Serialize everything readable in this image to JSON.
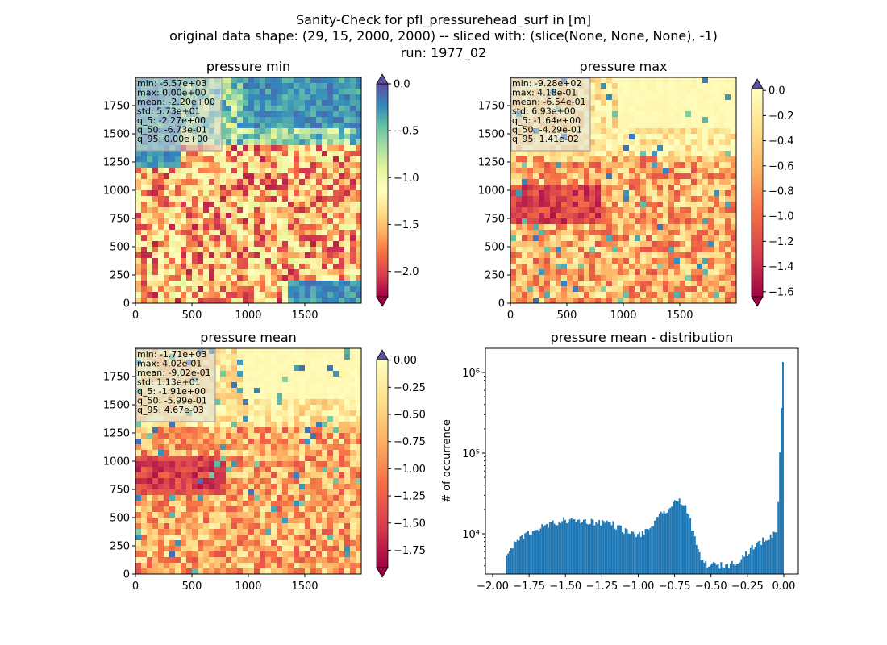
{
  "suptitle": [
    "Sanity-Check for pfl_pressurehead_surf in [m]",
    "original data shape: (29, 15, 2000, 2000) -- sliced with: (slice(None, None, None), -1)",
    "run: 1977_02"
  ],
  "colormap": "Spectral",
  "colors": {
    "histogram_bar": "#1f77b4",
    "colormap_stops": [
      "#9e0142",
      "#d53e4f",
      "#f46d43",
      "#fdae61",
      "#fee08b",
      "#ffffbf",
      "#e6f598",
      "#abdda4",
      "#66c2a5",
      "#3288bd",
      "#5e4fa2"
    ]
  },
  "chart_data": [
    {
      "type": "heatmap",
      "title": "pressure min",
      "xticks": [
        "0",
        "500",
        "1000",
        "1500"
      ],
      "yticks": [
        "0",
        "250",
        "500",
        "750",
        "1000",
        "1250",
        "1500",
        "1750"
      ],
      "xlim": [
        0,
        2000
      ],
      "ylim": [
        0,
        2000
      ],
      "colorbar": {
        "ticks": [
          "0.0",
          "−0.5",
          "−1.0",
          "−1.5",
          "−2.0"
        ],
        "tick_values": [
          0.0,
          -0.5,
          -1.0,
          -1.5,
          -2.0
        ],
        "vmin": -2.27,
        "vmax": 0.0,
        "extend": "both"
      },
      "stats": [
        "min: -6.57e+03",
        "max: 0.00e+00",
        "mean: -2.20e+00",
        "std: 5.73e+01",
        "q_5: -2.27e+00",
        "q_50: -6.73e-01",
        "q_95: 0.00e+00"
      ]
    },
    {
      "type": "heatmap",
      "title": "pressure max",
      "xticks": [
        "0",
        "500",
        "1000",
        "1500"
      ],
      "yticks": [
        "0",
        "250",
        "500",
        "750",
        "1000",
        "1250",
        "1500",
        "1750"
      ],
      "xlim": [
        0,
        2000
      ],
      "ylim": [
        0,
        2000
      ],
      "colorbar": {
        "ticks": [
          "0.0",
          "−0.2",
          "−0.4",
          "−0.6",
          "−0.8",
          "−1.0",
          "−1.2",
          "−1.4",
          "−1.6"
        ],
        "tick_values": [
          0.0,
          -0.2,
          -0.4,
          -0.6,
          -0.8,
          -1.0,
          -1.2,
          -1.4,
          -1.6
        ],
        "vmin": -1.64,
        "vmax": 0.0141,
        "extend": "both"
      },
      "stats": [
        "min: -9.28e+02",
        "max: 4.18e-01",
        "mean: -6.54e-01",
        "std: 6.93e+00",
        "q_5: -1.64e+00",
        "q_50: -4.29e-01",
        "q_95: 1.41e-02"
      ]
    },
    {
      "type": "heatmap",
      "title": "pressure mean",
      "xticks": [
        "0",
        "500",
        "1000",
        "1500"
      ],
      "yticks": [
        "0",
        "250",
        "500",
        "750",
        "1000",
        "1250",
        "1500",
        "1750"
      ],
      "xlim": [
        0,
        2000
      ],
      "ylim": [
        0,
        2000
      ],
      "colorbar": {
        "ticks": [
          "0.00",
          "−0.25",
          "−0.50",
          "−0.75",
          "−1.00",
          "−1.25",
          "−1.50",
          "−1.75"
        ],
        "tick_values": [
          0.0,
          -0.25,
          -0.5,
          -0.75,
          -1.0,
          -1.25,
          -1.5,
          -1.75
        ],
        "vmin": -1.91,
        "vmax": 0.00467,
        "extend": "both"
      },
      "stats": [
        "min: -1.71e+03",
        "max: 4.02e-01",
        "mean: -9.02e-01",
        "std: 1.13e+01",
        "q_5: -1.91e+00",
        "q_50: -5.99e-01",
        "q_95: 4.67e-03"
      ]
    },
    {
      "type": "bar",
      "title": "pressure mean - distribution",
      "ylabel": "# of occurrence",
      "yscale": "log",
      "xlim": [
        -2.05,
        0.1
      ],
      "ylim_log10": [
        3.5,
        6.3
      ],
      "xticks": [
        "−2.00",
        "−1.75",
        "−1.50",
        "−1.25",
        "−1.00",
        "−0.75",
        "−0.50",
        "−0.25",
        "0.00"
      ],
      "xtick_values": [
        -2.0,
        -1.75,
        -1.5,
        -1.25,
        -1.0,
        -0.75,
        -0.5,
        -0.25,
        0.0
      ],
      "yticks": [
        "10⁴",
        "10⁵",
        "10⁶"
      ],
      "ytick_log10": [
        4,
        5,
        6
      ],
      "bin_range": [
        -1.91,
        0.0
      ],
      "approx_counts": [
        [
          -1.91,
          5200
        ],
        [
          -1.85,
          7800
        ],
        [
          -1.8,
          9200
        ],
        [
          -1.75,
          10500
        ],
        [
          -1.7,
          11500
        ],
        [
          -1.65,
          12200
        ],
        [
          -1.6,
          13200
        ],
        [
          -1.55,
          14200
        ],
        [
          -1.5,
          14800
        ],
        [
          -1.45,
          14500
        ],
        [
          -1.4,
          14500
        ],
        [
          -1.35,
          14300
        ],
        [
          -1.3,
          14000
        ],
        [
          -1.25,
          14000
        ],
        [
          -1.2,
          13800
        ],
        [
          -1.15,
          12300
        ],
        [
          -1.1,
          11000
        ],
        [
          -1.05,
          10000
        ],
        [
          -1.0,
          9800
        ],
        [
          -0.95,
          10500
        ],
        [
          -0.9,
          13500
        ],
        [
          -0.85,
          17000
        ],
        [
          -0.8,
          20000
        ],
        [
          -0.75,
          24000
        ],
        [
          -0.72,
          27000
        ],
        [
          -0.68,
          22000
        ],
        [
          -0.65,
          15000
        ],
        [
          -0.62,
          9000
        ],
        [
          -0.58,
          5200
        ],
        [
          -0.55,
          4300
        ],
        [
          -0.5,
          4100
        ],
        [
          -0.45,
          4050
        ],
        [
          -0.4,
          4100
        ],
        [
          -0.35,
          4300
        ],
        [
          -0.3,
          5000
        ],
        [
          -0.25,
          6000
        ],
        [
          -0.2,
          7200
        ],
        [
          -0.15,
          8200
        ],
        [
          -0.1,
          9000
        ],
        [
          -0.05,
          11000
        ],
        [
          -0.01,
          1350000
        ]
      ]
    }
  ]
}
